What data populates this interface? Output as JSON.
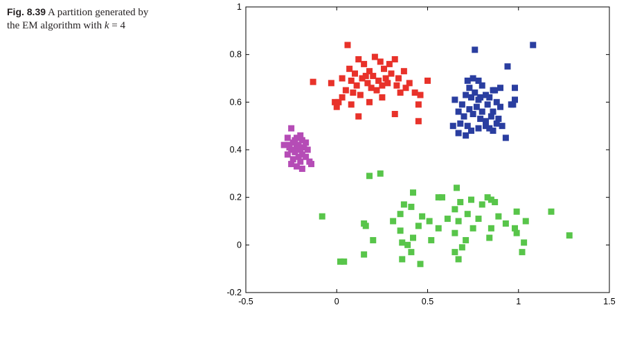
{
  "caption": {
    "label": "Fig. 8.39",
    "text_before": "A partition generated by the EM algorithm with ",
    "k_symbol": "k",
    "text_after": " = 4"
  },
  "colors": {
    "cluster_red": "#e8322a",
    "cluster_blue": "#2a3ea0",
    "cluster_magenta": "#b54cb6",
    "cluster_green": "#58c54a"
  },
  "chart_data": {
    "type": "scatter",
    "title": "",
    "xlabel": "",
    "ylabel": "",
    "xlim": [
      -0.5,
      1.5
    ],
    "ylim": [
      -0.2,
      1
    ],
    "x_ticks": [
      {
        "value": -0.5,
        "label": "-0.5"
      },
      {
        "value": 0,
        "label": "0"
      },
      {
        "value": 0.5,
        "label": "0.5"
      },
      {
        "value": 1,
        "label": "1"
      },
      {
        "value": 1.5,
        "label": "1.5"
      }
    ],
    "y_ticks": [
      {
        "value": -0.2,
        "label": "-0.2"
      },
      {
        "value": 0,
        "label": "0"
      },
      {
        "value": 0.2,
        "label": "0.2"
      },
      {
        "value": 0.4,
        "label": "0.4"
      },
      {
        "value": 0.6,
        "label": "0.6"
      },
      {
        "value": 0.8,
        "label": "0.8"
      },
      {
        "value": 1,
        "label": "1"
      }
    ],
    "grid": false,
    "marker": "square",
    "series": [
      {
        "color": "#e8322a",
        "points": [
          [
            0.06,
            0.84
          ],
          [
            -0.13,
            0.685
          ],
          [
            0.03,
            0.7
          ],
          [
            0.07,
            0.74
          ],
          [
            0.1,
            0.72
          ],
          [
            0.12,
            0.78
          ],
          [
            0.15,
            0.76
          ],
          [
            0.18,
            0.73
          ],
          [
            0.21,
            0.79
          ],
          [
            0.24,
            0.77
          ],
          [
            0.26,
            0.74
          ],
          [
            0.29,
            0.76
          ],
          [
            0.32,
            0.78
          ],
          [
            0.08,
            0.69
          ],
          [
            0.11,
            0.67
          ],
          [
            0.14,
            0.7
          ],
          [
            0.17,
            0.68
          ],
          [
            0.2,
            0.71
          ],
          [
            0.23,
            0.69
          ],
          [
            0.27,
            0.7
          ],
          [
            0.3,
            0.72
          ],
          [
            0.34,
            0.7
          ],
          [
            0.37,
            0.73
          ],
          [
            0.4,
            0.68
          ],
          [
            0.43,
            0.64
          ],
          [
            0.46,
            0.63
          ],
          [
            0.5,
            0.69
          ],
          [
            -0.03,
            0.68
          ],
          [
            0.05,
            0.65
          ],
          [
            0.09,
            0.64
          ],
          [
            0.13,
            0.63
          ],
          [
            0.19,
            0.66
          ],
          [
            0.22,
            0.65
          ],
          [
            0.25,
            0.67
          ],
          [
            0.28,
            0.68
          ],
          [
            0.33,
            0.67
          ],
          [
            0.35,
            0.64
          ],
          [
            0.38,
            0.66
          ],
          [
            0.01,
            0.6
          ],
          [
            0.03,
            0.62
          ],
          [
            0.08,
            0.59
          ],
          [
            0.18,
            0.6
          ],
          [
            0.25,
            0.62
          ],
          [
            0.32,
            0.55
          ],
          [
            0.45,
            0.59
          ],
          [
            0.12,
            0.54
          ],
          [
            0.45,
            0.52
          ],
          [
            0.0,
            0.58
          ],
          [
            -0.01,
            0.6
          ],
          [
            0.16,
            0.71
          ]
        ]
      },
      {
        "color": "#2a3ea0",
        "points": [
          [
            0.76,
            0.82
          ],
          [
            1.08,
            0.84
          ],
          [
            0.94,
            0.75
          ],
          [
            0.72,
            0.69
          ],
          [
            0.75,
            0.7
          ],
          [
            0.78,
            0.69
          ],
          [
            0.8,
            0.67
          ],
          [
            0.73,
            0.66
          ],
          [
            0.76,
            0.64
          ],
          [
            0.82,
            0.63
          ],
          [
            0.86,
            0.65
          ],
          [
            0.9,
            0.66
          ],
          [
            0.71,
            0.63
          ],
          [
            0.74,
            0.62
          ],
          [
            0.78,
            0.61
          ],
          [
            0.84,
            0.62
          ],
          [
            0.88,
            0.6
          ],
          [
            0.98,
            0.66
          ],
          [
            0.65,
            0.61
          ],
          [
            0.69,
            0.59
          ],
          [
            0.73,
            0.57
          ],
          [
            0.77,
            0.58
          ],
          [
            0.8,
            0.56
          ],
          [
            0.83,
            0.59
          ],
          [
            0.86,
            0.56
          ],
          [
            0.9,
            0.58
          ],
          [
            0.98,
            0.61
          ],
          [
            0.67,
            0.56
          ],
          [
            0.7,
            0.54
          ],
          [
            0.75,
            0.55
          ],
          [
            0.79,
            0.53
          ],
          [
            0.82,
            0.52
          ],
          [
            0.85,
            0.54
          ],
          [
            0.89,
            0.53
          ],
          [
            0.96,
            0.59
          ],
          [
            0.64,
            0.5
          ],
          [
            0.68,
            0.51
          ],
          [
            0.72,
            0.5
          ],
          [
            0.78,
            0.49
          ],
          [
            0.82,
            0.5
          ],
          [
            0.86,
            0.48
          ],
          [
            0.91,
            0.5
          ],
          [
            0.67,
            0.47
          ],
          [
            0.71,
            0.46
          ],
          [
            0.74,
            0.48
          ],
          [
            0.84,
            0.49
          ],
          [
            0.88,
            0.51
          ],
          [
            0.93,
            0.45
          ],
          [
            0.97,
            0.59
          ],
          [
            0.79,
            0.62
          ],
          [
            0.87,
            0.65
          ]
        ]
      },
      {
        "color": "#b54cb6",
        "points": [
          [
            -0.25,
            0.49
          ],
          [
            -0.2,
            0.46
          ],
          [
            -0.27,
            0.45
          ],
          [
            -0.23,
            0.44
          ],
          [
            -0.19,
            0.44
          ],
          [
            -0.29,
            0.42
          ],
          [
            -0.24,
            0.43
          ],
          [
            -0.21,
            0.42
          ],
          [
            -0.17,
            0.43
          ],
          [
            -0.26,
            0.41
          ],
          [
            -0.22,
            0.41
          ],
          [
            -0.18,
            0.41
          ],
          [
            -0.25,
            0.4
          ],
          [
            -0.2,
            0.4
          ],
          [
            -0.16,
            0.4
          ],
          [
            -0.27,
            0.38
          ],
          [
            -0.23,
            0.39
          ],
          [
            -0.19,
            0.38
          ],
          [
            -0.21,
            0.37
          ],
          [
            -0.17,
            0.37
          ],
          [
            -0.24,
            0.36
          ],
          [
            -0.2,
            0.35
          ],
          [
            -0.15,
            0.35
          ],
          [
            -0.25,
            0.34
          ],
          [
            -0.22,
            0.33
          ],
          [
            -0.19,
            0.32
          ],
          [
            -0.14,
            0.34
          ],
          [
            -0.26,
            0.42
          ],
          [
            -0.22,
            0.45
          ]
        ]
      },
      {
        "color": "#58c54a",
        "points": [
          [
            0.18,
            0.29
          ],
          [
            0.24,
            0.3
          ],
          [
            0.66,
            0.24
          ],
          [
            0.42,
            0.22
          ],
          [
            0.56,
            0.2
          ],
          [
            0.58,
            0.2
          ],
          [
            0.37,
            0.17
          ],
          [
            0.68,
            0.18
          ],
          [
            0.74,
            0.19
          ],
          [
            0.83,
            0.2
          ],
          [
            0.85,
            0.19
          ],
          [
            0.87,
            0.18
          ],
          [
            0.8,
            0.17
          ],
          [
            1.18,
            0.14
          ],
          [
            0.41,
            0.16
          ],
          [
            0.65,
            0.15
          ],
          [
            0.99,
            0.14
          ],
          [
            -0.08,
            0.12
          ],
          [
            0.35,
            0.13
          ],
          [
            0.47,
            0.12
          ],
          [
            0.72,
            0.13
          ],
          [
            0.89,
            0.12
          ],
          [
            0.61,
            0.11
          ],
          [
            0.78,
            0.11
          ],
          [
            0.31,
            0.1
          ],
          [
            0.51,
            0.1
          ],
          [
            0.67,
            0.1
          ],
          [
            0.93,
            0.09
          ],
          [
            1.04,
            0.1
          ],
          [
            0.15,
            0.09
          ],
          [
            0.16,
            0.08
          ],
          [
            0.45,
            0.08
          ],
          [
            0.85,
            0.07
          ],
          [
            0.98,
            0.07
          ],
          [
            0.35,
            0.06
          ],
          [
            0.56,
            0.07
          ],
          [
            0.65,
            0.05
          ],
          [
            0.75,
            0.07
          ],
          [
            0.99,
            0.05
          ],
          [
            1.28,
            0.04
          ],
          [
            0.42,
            0.03
          ],
          [
            0.52,
            0.02
          ],
          [
            0.84,
            0.03
          ],
          [
            0.2,
            0.02
          ],
          [
            0.36,
            0.01
          ],
          [
            0.39,
            0.0
          ],
          [
            0.71,
            0.02
          ],
          [
            0.69,
            -0.01
          ],
          [
            1.03,
            0.01
          ],
          [
            0.41,
            -0.03
          ],
          [
            0.65,
            -0.03
          ],
          [
            0.15,
            -0.04
          ],
          [
            1.02,
            -0.03
          ],
          [
            0.36,
            -0.06
          ],
          [
            0.67,
            -0.06
          ],
          [
            0.02,
            -0.07
          ],
          [
            0.04,
            -0.07
          ],
          [
            0.46,
            -0.08
          ]
        ]
      }
    ]
  }
}
